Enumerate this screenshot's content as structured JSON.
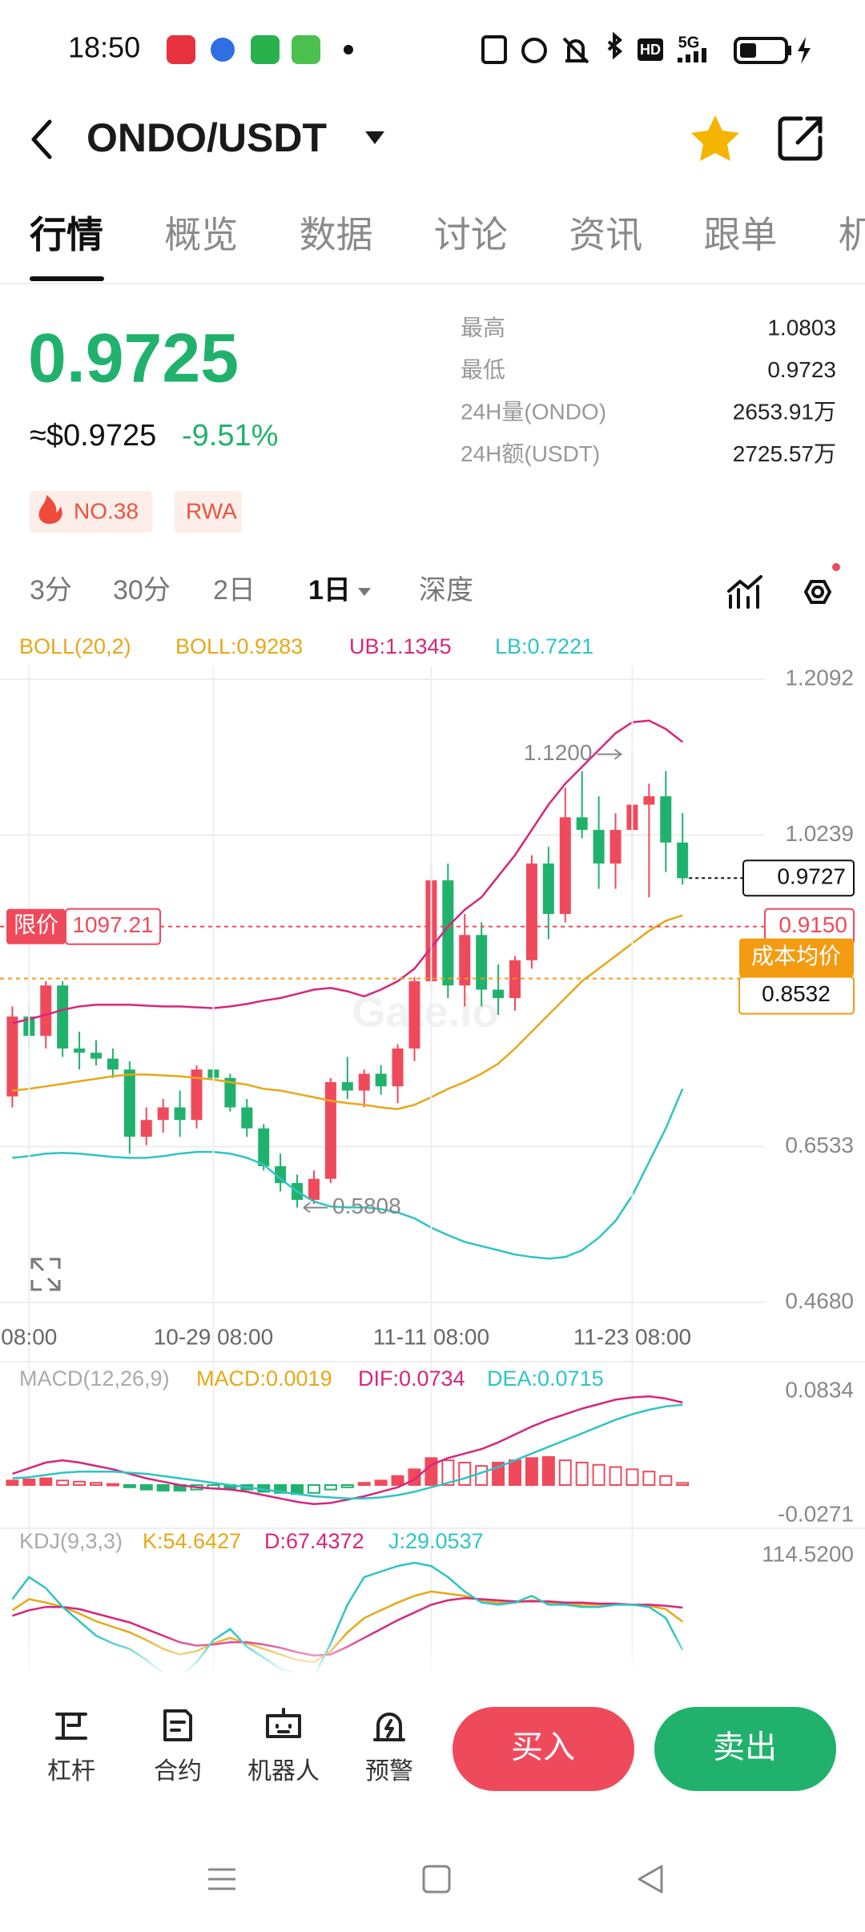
{
  "status_bar": {
    "time": "18:50",
    "hd": "HD",
    "network": "5G"
  },
  "header": {
    "title": "ONDO/USDT"
  },
  "tabs": {
    "items": [
      "行情",
      "概览",
      "数据",
      "讨论",
      "资讯",
      "跟单",
      "机"
    ],
    "active": 0
  },
  "ticker": {
    "price": "0.9725",
    "usd": "≈$0.9725",
    "change": "-9.51%",
    "stats": [
      {
        "label": "最高",
        "value": "1.0803"
      },
      {
        "label": "最低",
        "value": "0.9723"
      },
      {
        "label": "24H量(ONDO)",
        "value": "2653.91万"
      },
      {
        "label": "24H额(USDT)",
        "value": "2725.57万"
      }
    ],
    "tags": [
      "NO.38",
      "RWA"
    ]
  },
  "intervals": {
    "items": [
      "3分",
      "30分",
      "2日",
      "1日",
      "深度"
    ],
    "active": 3
  },
  "chart_data": [
    {
      "type": "candlestick",
      "indicator": "BOLL(20,2)",
      "watermark": "Gate.io",
      "up_color": "#ef4a5c",
      "down_color": "#20b26c",
      "grid": true,
      "categories": [
        null,
        "08:00",
        null,
        null,
        null,
        null,
        null,
        null,
        null,
        null,
        null,
        null,
        "10-29 08:00",
        null,
        null,
        null,
        null,
        null,
        null,
        null,
        null,
        null,
        null,
        null,
        null,
        "11-11 08:00",
        null,
        null,
        null,
        null,
        null,
        null,
        null,
        null,
        null,
        null,
        null,
        "11-23 08:00",
        null,
        null,
        null
      ],
      "open": [
        0.713,
        0.808,
        0.785,
        0.845,
        0.77,
        0.765,
        0.758,
        0.745,
        0.665,
        0.685,
        0.7,
        0.685,
        0.745,
        0.735,
        0.7,
        0.675,
        0.63,
        0.61,
        0.59,
        0.615,
        0.73,
        0.72,
        0.74,
        0.725,
        0.77,
        0.85,
        0.97,
        0.845,
        0.905,
        0.84,
        0.83,
        0.875,
        0.99,
        0.93,
        1.045,
        1.03,
        0.99,
        1.03,
        1.06,
        1.07,
        1.015
      ],
      "high": [
        0.82,
        0.825,
        0.85,
        0.85,
        0.79,
        0.78,
        0.77,
        0.755,
        0.7,
        0.71,
        0.72,
        0.75,
        0.765,
        0.74,
        0.71,
        0.68,
        0.645,
        0.62,
        0.625,
        0.735,
        0.76,
        0.745,
        0.75,
        0.775,
        0.855,
        0.99,
        0.99,
        0.93,
        0.92,
        0.87,
        0.88,
        1.0,
        1.01,
        1.08,
        1.1,
        1.07,
        1.05,
        1.12,
        1.085,
        1.1,
        1.05
      ],
      "low": [
        0.7,
        0.77,
        0.77,
        0.76,
        0.745,
        0.75,
        0.735,
        0.645,
        0.655,
        0.67,
        0.665,
        0.675,
        0.72,
        0.695,
        0.665,
        0.625,
        0.6,
        0.5808,
        0.585,
        0.61,
        0.71,
        0.7,
        0.715,
        0.705,
        0.755,
        0.84,
        0.83,
        0.82,
        0.82,
        0.81,
        0.815,
        0.865,
        0.9,
        0.92,
        1.02,
        0.96,
        0.96,
        0.97,
        0.95,
        0.98,
        0.965
      ],
      "close": [
        0.808,
        0.785,
        0.845,
        0.77,
        0.765,
        0.758,
        0.745,
        0.665,
        0.685,
        0.7,
        0.685,
        0.745,
        0.735,
        0.7,
        0.675,
        0.63,
        0.61,
        0.59,
        0.615,
        0.73,
        0.72,
        0.74,
        0.725,
        0.77,
        0.85,
        0.97,
        0.845,
        0.905,
        0.84,
        0.83,
        0.875,
        0.99,
        0.93,
        1.045,
        1.03,
        0.99,
        1.03,
        1.06,
        1.07,
        1.015,
        0.9725
      ],
      "series": [
        {
          "name": "BOLL:0.9283",
          "color": "#e6a817",
          "values": [
            0.72,
            0.722,
            0.725,
            0.728,
            0.731,
            0.734,
            0.737,
            0.739,
            0.739,
            0.738,
            0.737,
            0.735,
            0.733,
            0.73,
            0.727,
            0.722,
            0.72,
            0.716,
            0.712,
            0.708,
            0.705,
            0.703,
            0.7,
            0.698,
            0.703,
            0.712,
            0.722,
            0.73,
            0.74,
            0.752,
            0.77,
            0.79,
            0.81,
            0.83,
            0.85,
            0.865,
            0.88,
            0.895,
            0.91,
            0.922,
            0.9283
          ]
        },
        {
          "name": "UB:1.1345",
          "color": "#d6267c",
          "values": [
            0.8,
            0.805,
            0.81,
            0.816,
            0.82,
            0.822,
            0.822,
            0.822,
            0.821,
            0.82,
            0.82,
            0.819,
            0.818,
            0.82,
            0.823,
            0.827,
            0.83,
            0.835,
            0.84,
            0.842,
            0.838,
            0.832,
            0.84,
            0.85,
            0.865,
            0.89,
            0.915,
            0.935,
            0.95,
            0.975,
            1.0,
            1.03,
            1.06,
            1.085,
            1.105,
            1.125,
            1.145,
            1.158,
            1.16,
            1.15,
            1.1345
          ]
        },
        {
          "name": "LB:0.7221",
          "color": "#2ec4c4",
          "values": [
            0.64,
            0.642,
            0.645,
            0.646,
            0.645,
            0.643,
            0.641,
            0.64,
            0.64,
            0.642,
            0.645,
            0.647,
            0.647,
            0.645,
            0.64,
            0.632,
            0.615,
            0.6,
            0.588,
            0.582,
            0.581,
            0.581,
            0.579,
            0.575,
            0.568,
            0.557,
            0.548,
            0.54,
            0.535,
            0.53,
            0.525,
            0.522,
            0.52,
            0.522,
            0.53,
            0.545,
            0.565,
            0.595,
            0.635,
            0.675,
            0.7221
          ]
        }
      ],
      "max_label": "1.1200",
      "min_label": "0.5808",
      "price_lines": [
        {
          "style": "current",
          "value": 0.9727,
          "label": "0.9727"
        },
        {
          "style": "limit",
          "value": 0.915,
          "label": "0.9150",
          "tag": "限价",
          "tag_value": "1097.21"
        },
        {
          "style": "cost",
          "value": 0.8532,
          "label": "0.8532",
          "tag": "成本均价"
        }
      ],
      "ylim": [
        0.468,
        1.2092
      ],
      "yticks": [
        1.2092,
        1.0239,
        0.6533,
        {
          "value": 0.468,
          "label": "0.4680"
        }
      ]
    },
    {
      "type": "macd",
      "indicator": "MACD(12,26,9)",
      "up_color": "#ef4a5c",
      "down_color": "#20b26c",
      "grid": false,
      "series": [
        {
          "name": "MACD:0.0019",
          "color": "#e6a817",
          "kind": "bar",
          "values": [
            0.004,
            0.005,
            0.006,
            0.004,
            0.003,
            0.002,
            0.001,
            -0.002,
            -0.004,
            -0.005,
            -0.005,
            -0.004,
            -0.003,
            -0.003,
            -0.004,
            -0.006,
            -0.007,
            -0.008,
            -0.007,
            -0.004,
            -0.002,
            0.002,
            0.004,
            0.008,
            0.014,
            0.024,
            0.022,
            0.02,
            0.017,
            0.02,
            0.022,
            0.024,
            0.025,
            0.022,
            0.02,
            0.018,
            0.016,
            0.014,
            0.012,
            0.008,
            0.0019
          ]
        },
        {
          "name": "DIF:0.0734",
          "color": "#d6267c",
          "kind": "line",
          "values": [
            0.01,
            0.015,
            0.02,
            0.022,
            0.02,
            0.017,
            0.014,
            0.01,
            0.006,
            0.003,
            0.0,
            -0.002,
            -0.003,
            -0.004,
            -0.006,
            -0.009,
            -0.012,
            -0.015,
            -0.017,
            -0.016,
            -0.013,
            -0.01,
            -0.006,
            -0.002,
            0.005,
            0.018,
            0.024,
            0.028,
            0.032,
            0.038,
            0.045,
            0.052,
            0.058,
            0.063,
            0.068,
            0.072,
            0.076,
            0.078,
            0.079,
            0.077,
            0.0734
          ]
        },
        {
          "name": "DEA:0.0715",
          "color": "#2ec4c4",
          "kind": "line",
          "values": [
            0.006,
            0.007,
            0.009,
            0.011,
            0.012,
            0.012,
            0.012,
            0.011,
            0.01,
            0.008,
            0.006,
            0.004,
            0.002,
            0.0,
            -0.002,
            -0.004,
            -0.006,
            -0.008,
            -0.01,
            -0.011,
            -0.012,
            -0.012,
            -0.011,
            -0.009,
            -0.006,
            -0.002,
            0.002,
            0.006,
            0.011,
            0.016,
            0.022,
            0.028,
            0.034,
            0.04,
            0.046,
            0.052,
            0.058,
            0.063,
            0.067,
            0.07,
            0.0715
          ]
        }
      ],
      "ylim": [
        -0.0271,
        0.0834
      ],
      "yticks": [
        0.0834,
        -0.0271
      ]
    },
    {
      "type": "kdj",
      "indicator": "KDJ(9,3,3)",
      "grid": false,
      "series": [
        {
          "name": "K:54.6427",
          "color": "#e6a817",
          "kind": "line",
          "values": [
            65,
            75,
            72,
            68,
            62,
            55,
            50,
            45,
            38,
            30,
            25,
            28,
            35,
            40,
            35,
            30,
            25,
            20,
            18,
            28,
            45,
            58,
            65,
            72,
            78,
            82,
            80,
            78,
            74,
            72,
            72,
            74,
            72,
            71,
            70,
            70,
            70,
            70,
            69,
            66,
            54.6427
          ]
        },
        {
          "name": "D:67.4372",
          "color": "#d6267c",
          "kind": "line",
          "values": [
            60,
            65,
            68,
            68,
            66,
            62,
            58,
            54,
            48,
            42,
            36,
            33,
            34,
            36,
            36,
            34,
            31,
            27,
            24,
            25,
            32,
            40,
            48,
            56,
            63,
            70,
            74,
            76,
            75,
            74,
            73,
            73,
            73,
            72,
            72,
            71,
            71,
            70,
            70,
            69,
            67.4372
          ]
        },
        {
          "name": "J:29.0537",
          "color": "#2ec4c4",
          "kind": "line",
          "values": [
            75,
            95,
            85,
            68,
            55,
            42,
            35,
            30,
            20,
            8,
            5,
            18,
            38,
            48,
            32,
            22,
            12,
            8,
            5,
            35,
            70,
            95,
            100,
            105,
            108,
            105,
            95,
            82,
            72,
            70,
            72,
            78,
            70,
            70,
            68,
            68,
            70,
            70,
            68,
            58,
            29.0537
          ]
        }
      ],
      "ylim": [
        0,
        114.52
      ],
      "yticks": [
        {
          "value": 114.52,
          "label": "114.5200"
        }
      ]
    }
  ],
  "bottom_bar": {
    "tools": [
      "杠杆",
      "合约",
      "机器人",
      "预警"
    ],
    "buy": "买入",
    "sell": "卖出"
  }
}
